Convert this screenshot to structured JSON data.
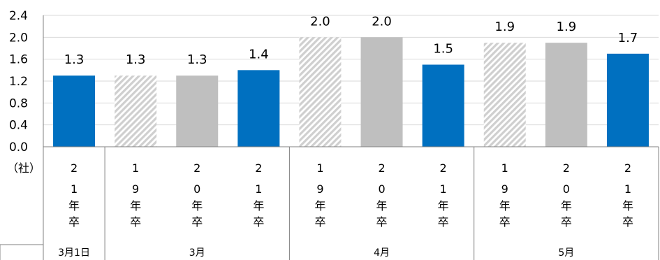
{
  "chart_data": {
    "type": "bar",
    "unit_label": "（社）",
    "ylim": [
      0,
      2.4
    ],
    "yticks": [
      "0.0",
      "0.4",
      "0.8",
      "1.2",
      "1.6",
      "2.0",
      "2.4"
    ],
    "grid": true,
    "categories": [
      {
        "label": [
          "2",
          "1",
          "年",
          "卒"
        ],
        "group": "3月1日",
        "value": 1.3,
        "display": "1.3",
        "style": "solid-blue"
      },
      {
        "label": [
          "1",
          "9",
          "年",
          "卒"
        ],
        "group": "3月",
        "value": 1.3,
        "display": "1.3",
        "style": "hatched-gray"
      },
      {
        "label": [
          "2",
          "0",
          "年",
          "卒"
        ],
        "group": "3月",
        "value": 1.3,
        "display": "1.3",
        "style": "solid-gray"
      },
      {
        "label": [
          "2",
          "1",
          "年",
          "卒"
        ],
        "group": "3月",
        "value": 1.4,
        "display": "1.4",
        "style": "solid-blue"
      },
      {
        "label": [
          "1",
          "9",
          "年",
          "卒"
        ],
        "group": "4月",
        "value": 2.0,
        "display": "2.0",
        "style": "hatched-gray"
      },
      {
        "label": [
          "2",
          "0",
          "年",
          "卒"
        ],
        "group": "4月",
        "value": 2.0,
        "display": "2.0",
        "style": "solid-gray"
      },
      {
        "label": [
          "2",
          "1",
          "年",
          "卒"
        ],
        "group": "4月",
        "value": 1.5,
        "display": "1.5",
        "style": "solid-blue"
      },
      {
        "label": [
          "1",
          "9",
          "年",
          "卒"
        ],
        "group": "5月",
        "value": 1.9,
        "display": "1.9",
        "style": "hatched-gray"
      },
      {
        "label": [
          "2",
          "0",
          "年",
          "卒"
        ],
        "group": "5月",
        "value": 1.9,
        "display": "1.9",
        "style": "solid-gray"
      },
      {
        "label": [
          "2",
          "1",
          "年",
          "卒"
        ],
        "group": "5月",
        "value": 1.7,
        "display": "1.7",
        "style": "solid-blue"
      }
    ],
    "groups": [
      "3月1日",
      "3月",
      "4月",
      "5月"
    ],
    "colors": {
      "blue": "#0070C0",
      "gray": "#BFBFBF",
      "hatch": "#D0D0D0",
      "grid": "#D9D9D9",
      "axis": "#808080"
    }
  }
}
